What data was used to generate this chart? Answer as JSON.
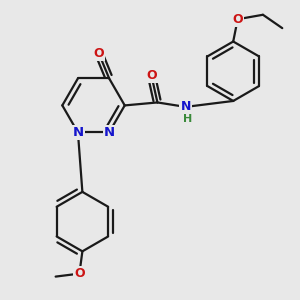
{
  "bg_color": "#e8e8e8",
  "bond_color": "#1a1a1a",
  "bond_width": 1.6,
  "colors": {
    "N": "#1414cc",
    "O": "#cc1414",
    "H": "#3a8a3a",
    "C": "#1a1a1a"
  },
  "xlim": [
    0,
    10
  ],
  "ylim": [
    0,
    10
  ]
}
